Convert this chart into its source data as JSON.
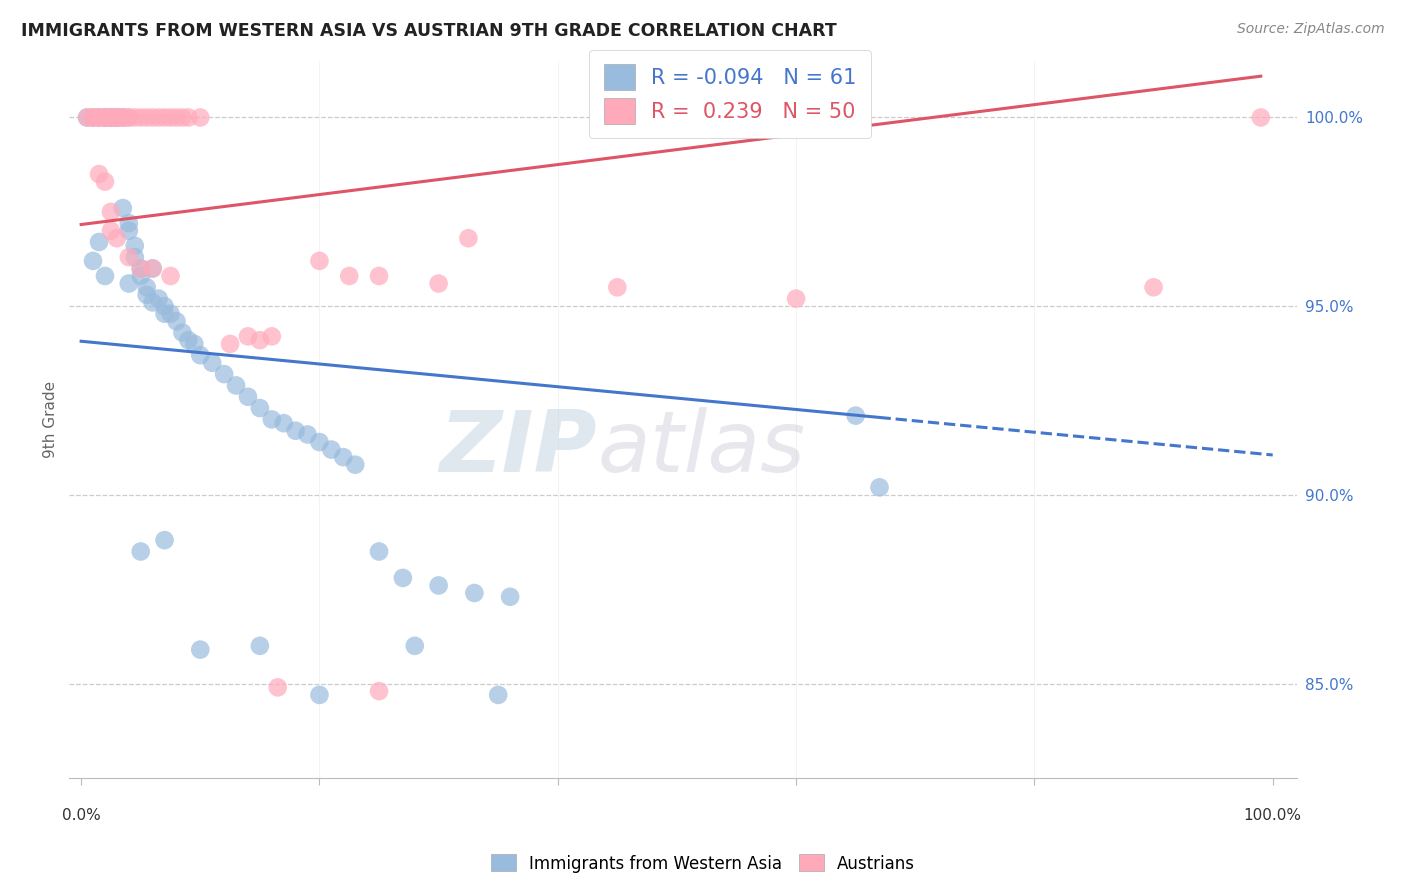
{
  "title": "IMMIGRANTS FROM WESTERN ASIA VS AUSTRIAN 9TH GRADE CORRELATION CHART",
  "source": "Source: ZipAtlas.com",
  "ylabel": "9th Grade",
  "legend_blue_r": "-0.094",
  "legend_blue_n": "61",
  "legend_pink_r": " 0.239",
  "legend_pink_n": "50",
  "blue_fill_color": "#99BBDD",
  "pink_fill_color": "#FFAABB",
  "blue_line_color": "#4477CC",
  "pink_line_color": "#DD5566",
  "text_color": "#222222",
  "source_color": "#888888",
  "grid_color": "#CCCCCC",
  "ytick_color": "#4477CC",
  "blue_scatter_x": [
    0.5,
    1.0,
    1.5,
    2.0,
    2.0,
    2.5,
    2.5,
    3.0,
    3.0,
    3.5,
    3.5,
    4.0,
    4.0,
    4.5,
    4.5,
    5.0,
    5.0,
    5.5,
    5.5,
    6.0,
    6.0,
    6.5,
    7.0,
    7.0,
    7.5,
    8.0,
    8.5,
    9.0,
    9.5,
    10.0,
    11.0,
    12.0,
    13.0,
    14.0,
    15.0,
    16.0,
    17.0,
    18.0,
    19.0,
    20.0,
    21.0,
    22.0,
    23.0,
    25.0,
    27.0,
    30.0,
    33.0,
    36.0,
    1.0,
    2.0,
    4.0,
    5.0,
    7.0,
    10.0,
    15.0,
    20.0,
    28.0,
    35.0,
    65.0,
    67.0,
    1.5
  ],
  "blue_scatter_y": [
    100.0,
    100.0,
    100.0,
    100.0,
    100.0,
    100.0,
    100.0,
    100.0,
    100.0,
    100.0,
    97.6,
    97.2,
    97.0,
    96.6,
    96.3,
    96.0,
    95.8,
    95.5,
    95.3,
    95.1,
    96.0,
    95.2,
    95.0,
    94.8,
    94.8,
    94.6,
    94.3,
    94.1,
    94.0,
    93.7,
    93.5,
    93.2,
    92.9,
    92.6,
    92.3,
    92.0,
    91.9,
    91.7,
    91.6,
    91.4,
    91.2,
    91.0,
    90.8,
    88.5,
    87.8,
    87.6,
    87.4,
    87.3,
    96.2,
    95.8,
    95.6,
    88.5,
    88.8,
    85.9,
    86.0,
    84.7,
    86.0,
    84.7,
    92.1,
    90.2,
    96.7
  ],
  "pink_scatter_x": [
    0.5,
    1.0,
    1.0,
    1.5,
    1.5,
    2.0,
    2.0,
    2.5,
    2.5,
    3.0,
    3.0,
    3.5,
    3.5,
    4.0,
    4.0,
    4.5,
    5.0,
    5.5,
    6.0,
    6.5,
    7.0,
    7.5,
    8.0,
    8.5,
    9.0,
    10.0,
    1.5,
    2.0,
    2.5,
    14.0,
    15.0,
    16.0,
    20.0,
    22.5,
    25.0,
    30.0,
    32.5,
    45.0,
    60.0,
    90.0,
    2.5,
    3.0,
    4.0,
    5.0,
    6.0,
    7.5,
    12.5,
    16.5,
    25.0,
    99.0
  ],
  "pink_scatter_y": [
    100.0,
    100.0,
    100.0,
    100.0,
    100.0,
    100.0,
    100.0,
    100.0,
    100.0,
    100.0,
    100.0,
    100.0,
    100.0,
    100.0,
    100.0,
    100.0,
    100.0,
    100.0,
    100.0,
    100.0,
    100.0,
    100.0,
    100.0,
    100.0,
    100.0,
    100.0,
    98.5,
    98.3,
    97.5,
    94.2,
    94.1,
    94.2,
    96.2,
    95.8,
    95.8,
    95.6,
    96.8,
    95.5,
    95.2,
    95.5,
    97.0,
    96.8,
    96.3,
    96.0,
    96.0,
    95.8,
    94.0,
    84.9,
    84.8,
    100.0
  ],
  "xlim": [
    -1.0,
    102.0
  ],
  "ylim": [
    82.5,
    101.5
  ],
  "yticks": [
    85.0,
    90.0,
    95.0,
    100.0
  ],
  "ytick_labels": [
    "85.0%",
    "90.0%",
    "95.0%",
    "100.0%"
  ],
  "watermark_zip": "ZIP",
  "watermark_atlas": "atlas",
  "legend_label_blue": "Immigrants from Western Asia",
  "legend_label_pink": "Austrians",
  "blue_trend_start_x": 0.0,
  "blue_trend_solid_end_x": 67.0,
  "blue_trend_dash_end_x": 100.0,
  "pink_trend_start_x": 0.0,
  "pink_trend_end_x": 99.0
}
